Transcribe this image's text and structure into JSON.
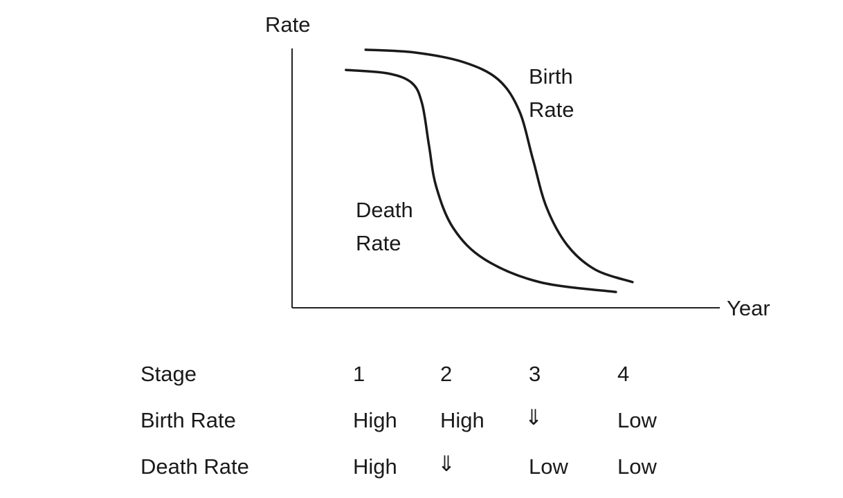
{
  "chart_data": {
    "type": "line",
    "title": "",
    "xlabel": "Year",
    "ylabel": "Rate",
    "xlim": [
      0,
      100
    ],
    "ylim": [
      0,
      100
    ],
    "grid": false,
    "series": [
      {
        "name": "Birth Rate",
        "label_lines": [
          "Birth",
          "Rate"
        ],
        "x": [
          17.2,
          28.8,
          40.1,
          48.2,
          53.1,
          56.3,
          59.5,
          64.4,
          70.9,
          79.6
        ],
        "y": [
          99.5,
          98.4,
          94.7,
          88,
          76,
          57.3,
          38.7,
          24,
          14.7,
          9.9
        ]
      },
      {
        "name": "Death Rate",
        "label_lines": [
          "Death",
          "Rate"
        ],
        "x": [
          12.6,
          22.3,
          28,
          30.4,
          32,
          33.7,
          37.7,
          45,
          57.9,
          75.7
        ],
        "y": [
          91.7,
          90.4,
          86.7,
          78.7,
          62.7,
          46.7,
          30.7,
          18.7,
          9.9,
          6.1
        ]
      }
    ]
  },
  "table": {
    "header": [
      "Stage",
      "1",
      "2",
      "3",
      "4"
    ],
    "rows": [
      [
        "Birth Rate",
        "High",
        "High",
        "⇓",
        "Low"
      ],
      [
        "Death Rate",
        "High",
        "⇓",
        "Low",
        "Low"
      ]
    ]
  }
}
